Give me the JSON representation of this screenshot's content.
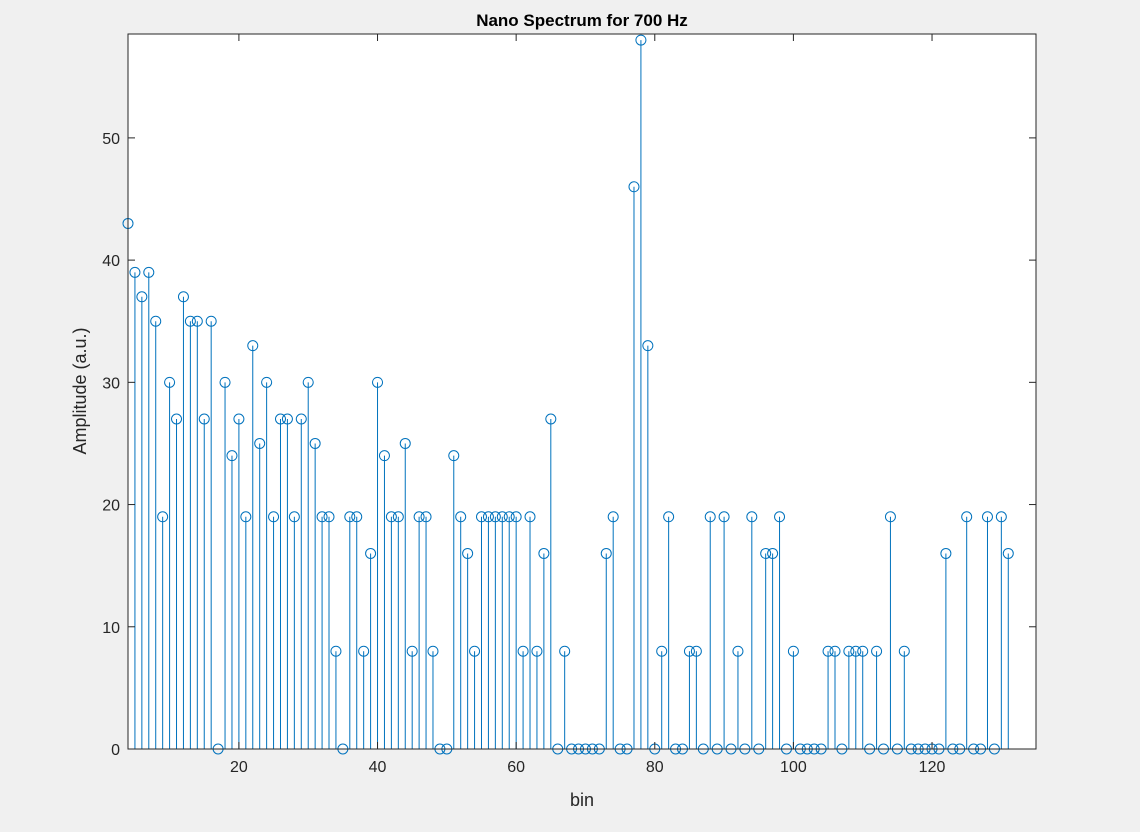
{
  "chart_data": {
    "type": "stem",
    "title": "Nano Spectrum for 700 Hz",
    "xlabel": "bin",
    "ylabel": "Amplitude (a.u.)",
    "xlim": [
      4,
      135
    ],
    "ylim": [
      0,
      58.5
    ],
    "xticks": [
      20,
      40,
      60,
      80,
      100,
      120
    ],
    "yticks": [
      0,
      10,
      20,
      30,
      40,
      50
    ],
    "grid": false,
    "marker": "circle",
    "color": "#0072BD",
    "x_start": 4,
    "values": [
      43,
      39,
      37,
      39,
      35,
      19,
      30,
      27,
      37,
      35,
      35,
      27,
      35,
      0,
      30,
      24,
      27,
      19,
      33,
      25,
      30,
      19,
      27,
      27,
      19,
      27,
      30,
      25,
      19,
      19,
      8,
      0,
      19,
      19,
      8,
      16,
      30,
      24,
      19,
      19,
      25,
      8,
      19,
      19,
      8,
      0,
      0,
      24,
      19,
      16,
      8,
      19,
      19,
      19,
      19,
      19,
      19,
      8,
      19,
      8,
      16,
      27,
      0,
      8,
      0,
      0,
      0,
      0,
      0,
      16,
      19,
      0,
      0,
      46,
      58,
      33,
      0,
      8,
      19,
      0,
      0,
      8,
      8,
      0,
      19,
      0,
      19,
      0,
      8,
      0,
      19,
      0,
      16,
      16,
      19,
      0,
      8,
      0,
      0,
      0,
      0,
      8,
      8,
      0,
      8,
      8,
      8,
      0,
      8,
      0,
      19,
      0,
      8,
      0,
      0,
      0,
      0,
      0,
      16,
      0,
      0,
      19,
      0,
      0,
      19,
      0,
      19,
      16
    ]
  }
}
